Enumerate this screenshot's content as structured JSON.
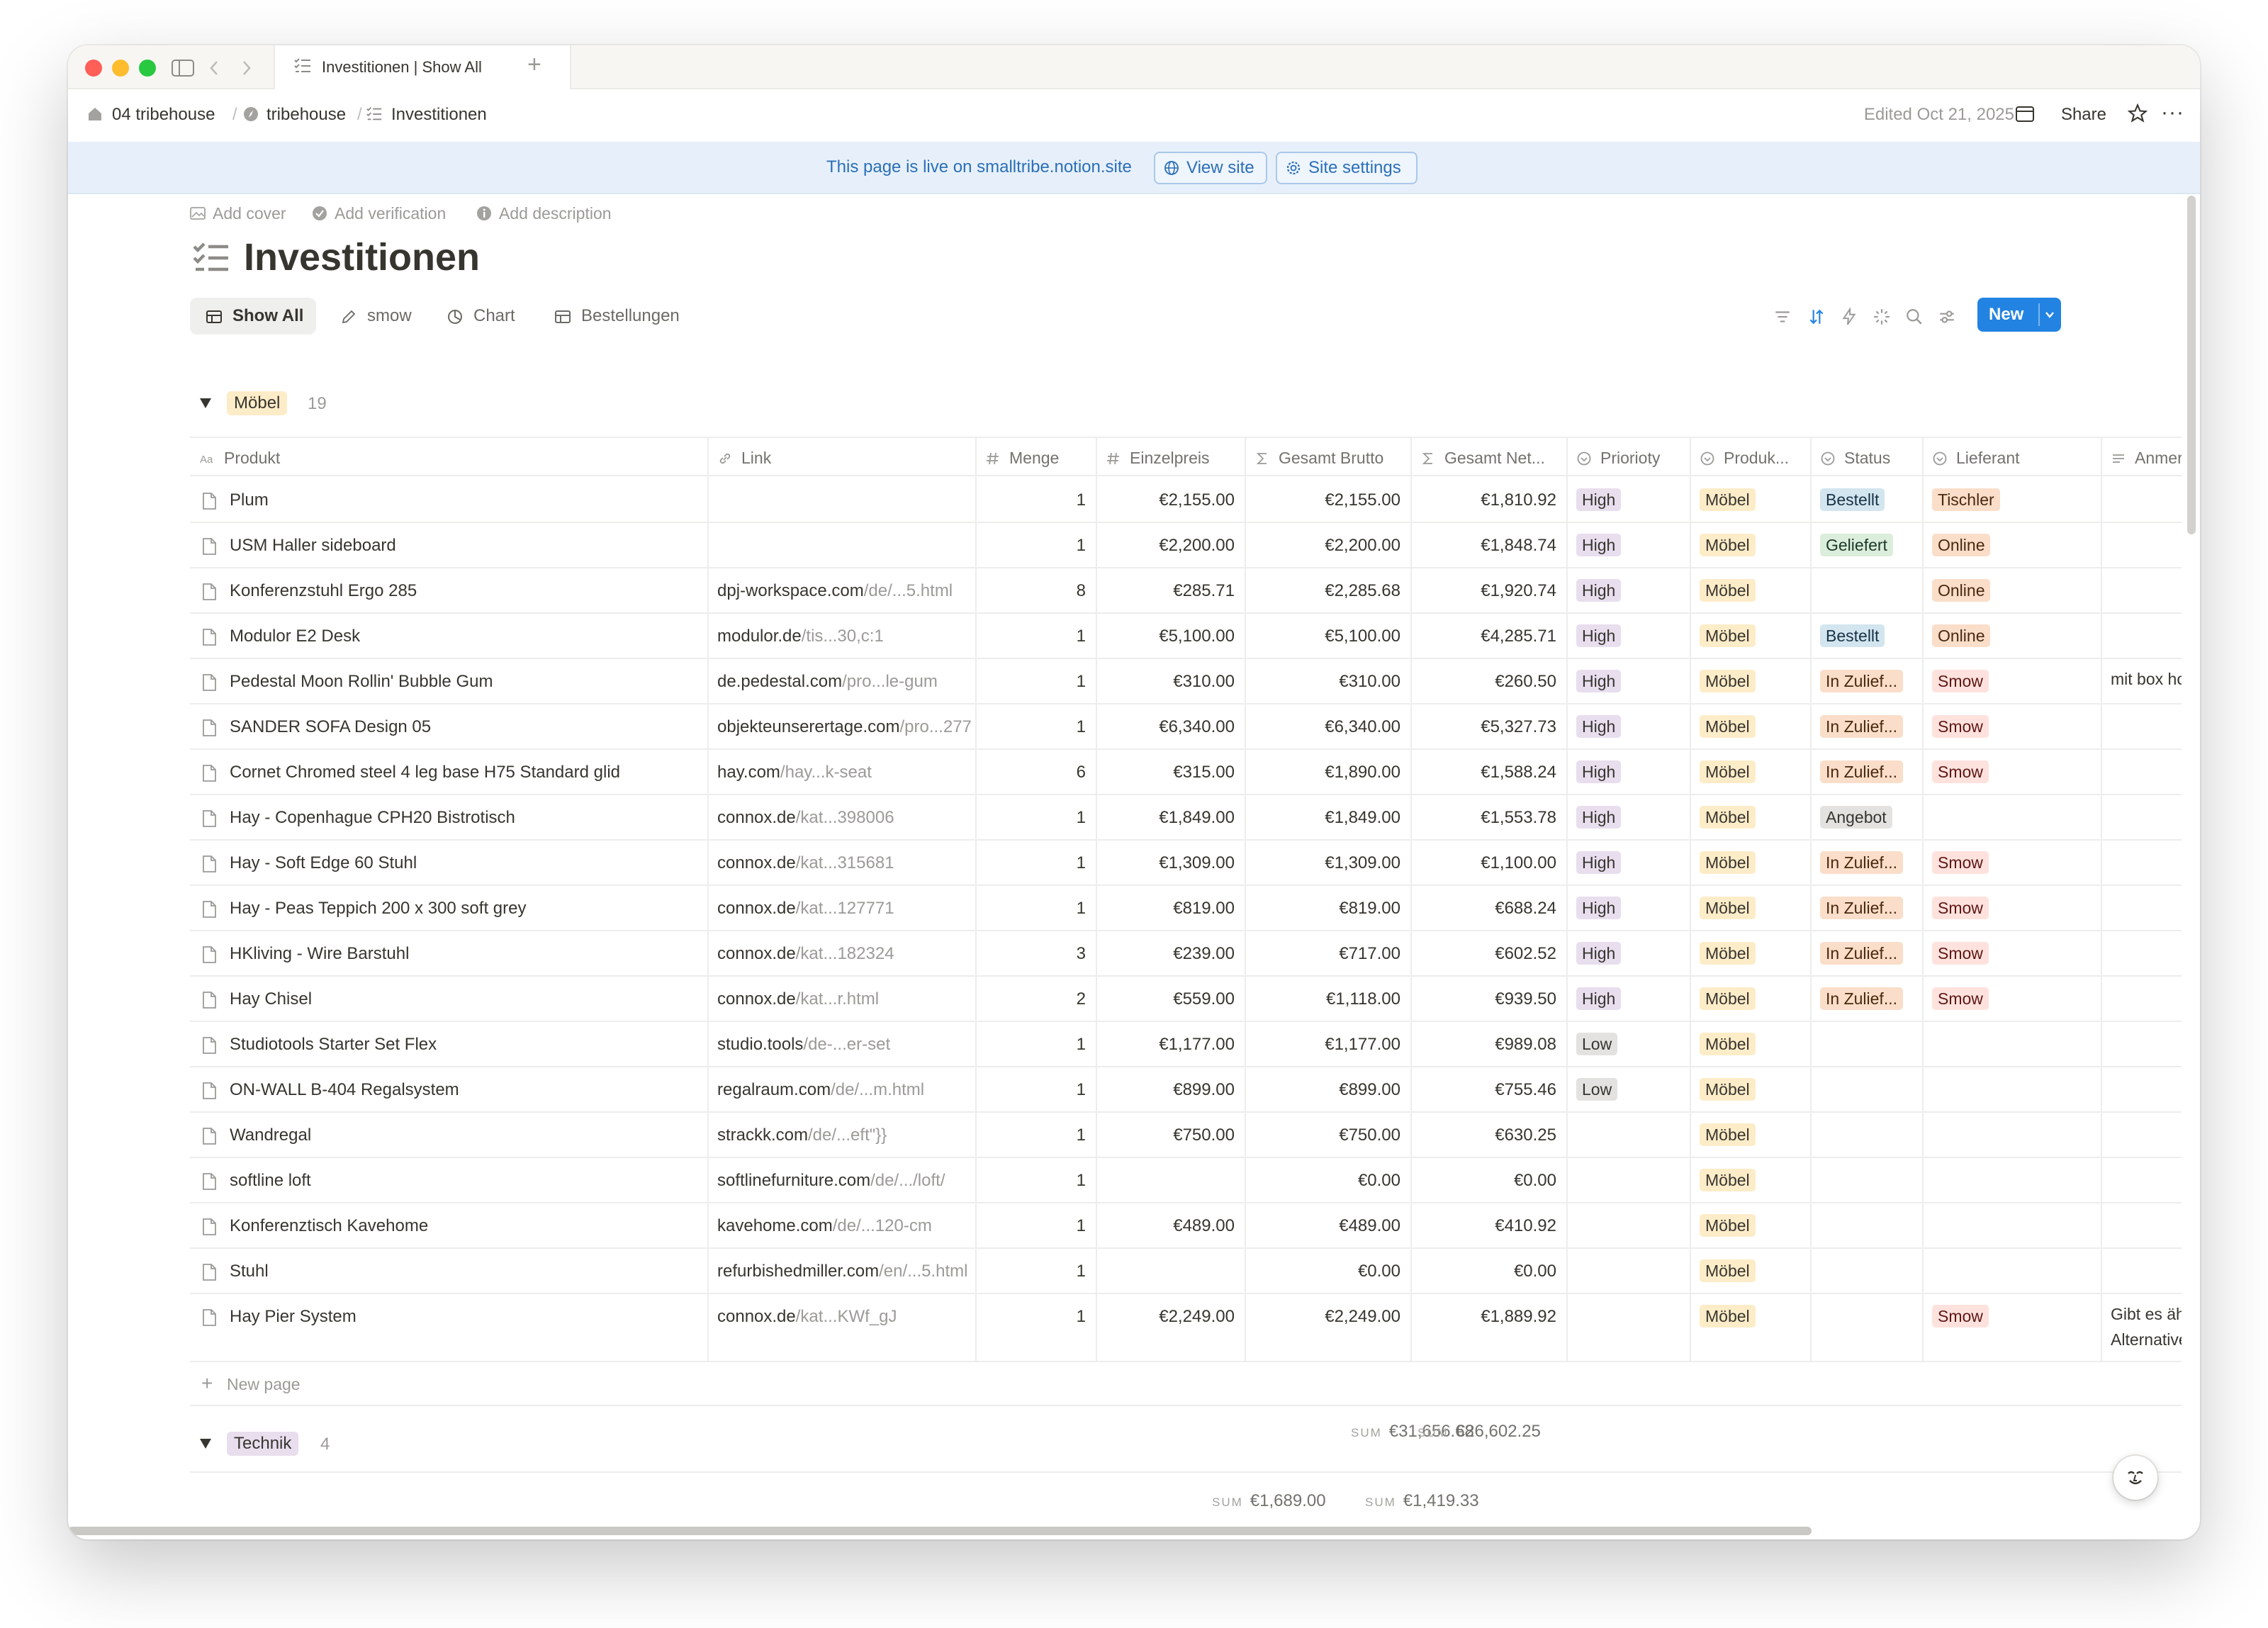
{
  "window": {
    "tab_title": "Investitionen | Show All",
    "new_tab": "+"
  },
  "breadcrumbs": [
    "04 tribehouse",
    "tribehouse",
    "Investitionen"
  ],
  "header": {
    "edited": "Edited Oct 21, 2025",
    "share": "Share",
    "more": "···"
  },
  "banner": {
    "text": "This page is live on smalltribe.notion.site",
    "view_site": "View site",
    "site_settings": "Site settings"
  },
  "page_meta": {
    "add_cover": "Add cover",
    "add_verification": "Add verification",
    "add_description": "Add description"
  },
  "page": {
    "title": "Investitionen"
  },
  "views": [
    "Show All",
    "smow",
    "Chart",
    "Bestellungen"
  ],
  "toolbar": {
    "new_label": "New",
    "icons": [
      "filter-icon",
      "sort-icon",
      "automation-icon",
      "customize-icon",
      "search-icon",
      "settings-icon"
    ]
  },
  "columns": [
    "Produkt",
    "Link",
    "Menge",
    "Einzelpreis",
    "Gesamt Brutto",
    "Gesamt Net...",
    "Priorioty",
    "Produk...",
    "Status",
    "Lieferant",
    "Anmerkungen"
  ],
  "colors": {
    "accent": "#2383e2",
    "banner_bg": "#e7f0fa",
    "tag_high": "#e8deee",
    "tag_low": "#e3e2e0",
    "tag_moebel": "#fdecc8",
    "tag_bestellt": "#d3e5ef",
    "tag_geliefert": "#dbeddb",
    "tag_zuliefer": "#fadec9",
    "tag_angebot": "#e3e2e0",
    "tag_lieferant": "#fadec9",
    "tag_smow": "#ffe2dd",
    "tag_technik": "#e8deee"
  },
  "groups": [
    {
      "name": "Möbel",
      "count": "19",
      "rows": [
        {
          "produkt": "Plum",
          "link_host": "",
          "link_path": "",
          "menge": "1",
          "einzel": "€2,155.00",
          "brutto": "€2,155.00",
          "netto": "€1,810.92",
          "prio": "High",
          "produk": "Möbel",
          "status": "Bestellt",
          "lieferant": "Tischler",
          "anmerkung": ""
        },
        {
          "produkt": "USM Haller sideboard",
          "link_host": "",
          "link_path": "",
          "menge": "1",
          "einzel": "€2,200.00",
          "brutto": "€2,200.00",
          "netto": "€1,848.74",
          "prio": "High",
          "produk": "Möbel",
          "status": "Geliefert",
          "lieferant": "Online",
          "anmerkung": ""
        },
        {
          "produkt": "Konferenzstuhl Ergo 285",
          "link_host": "dpj-workspace.com",
          "link_path": "/de/...5.html",
          "menge": "8",
          "einzel": "€285.71",
          "brutto": "€2,285.68",
          "netto": "€1,920.74",
          "prio": "High",
          "produk": "Möbel",
          "status": "",
          "lieferant": "Online",
          "anmerkung": ""
        },
        {
          "produkt": "Modulor E2 Desk",
          "link_host": "modulor.de",
          "link_path": "/tis...30,c:1",
          "menge": "1",
          "einzel": "€5,100.00",
          "brutto": "€5,100.00",
          "netto": "€4,285.71",
          "prio": "High",
          "produk": "Möbel",
          "status": "Bestellt",
          "lieferant": "Online",
          "anmerkung": ""
        },
        {
          "produkt": "Pedestal Moon Rollin' Bubble Gum",
          "link_host": "de.pedestal.com",
          "link_path": "/pro...le-gum",
          "menge": "1",
          "einzel": "€310.00",
          "brutto": "€310.00",
          "netto": "€260.50",
          "prio": "High",
          "produk": "Möbel",
          "status": "In Zulief...",
          "lieferant": "Smow",
          "anmerkung": "mit box holder und"
        },
        {
          "produkt": "SANDER SOFA Design 05",
          "link_host": "objekteunserertage.com",
          "link_path": "/pro...277",
          "menge": "1",
          "einzel": "€6,340.00",
          "brutto": "€6,340.00",
          "netto": "€5,327.73",
          "prio": "High",
          "produk": "Möbel",
          "status": "In Zulief...",
          "lieferant": "Smow",
          "anmerkung": ""
        },
        {
          "produkt": "Cornet Chromed steel 4 leg base H75 Standard glid",
          "link_host": "hay.com",
          "link_path": "/hay...k-seat",
          "menge": "6",
          "einzel": "€315.00",
          "brutto": "€1,890.00",
          "netto": "€1,588.24",
          "prio": "High",
          "produk": "Möbel",
          "status": "In Zulief...",
          "lieferant": "Smow",
          "anmerkung": ""
        },
        {
          "produkt": "Hay - Copenhague CPH20 Bistrotisch",
          "link_host": "connox.de",
          "link_path": "/kat...398006",
          "menge": "1",
          "einzel": "€1,849.00",
          "brutto": "€1,849.00",
          "netto": "€1,553.78",
          "prio": "High",
          "produk": "Möbel",
          "status": "Angebot",
          "lieferant": "",
          "anmerkung": ""
        },
        {
          "produkt": "Hay - Soft Edge 60 Stuhl",
          "link_host": "connox.de",
          "link_path": "/kat...315681",
          "menge": "1",
          "einzel": "€1,309.00",
          "brutto": "€1,309.00",
          "netto": "€1,100.00",
          "prio": "High",
          "produk": "Möbel",
          "status": "In Zulief...",
          "lieferant": "Smow",
          "anmerkung": ""
        },
        {
          "produkt": "Hay - Peas Teppich 200 x 300 soft grey",
          "link_host": "connox.de",
          "link_path": "/kat...127771",
          "menge": "1",
          "einzel": "€819.00",
          "brutto": "€819.00",
          "netto": "€688.24",
          "prio": "High",
          "produk": "Möbel",
          "status": "In Zulief...",
          "lieferant": "Smow",
          "anmerkung": ""
        },
        {
          "produkt": "HKliving - Wire Barstuhl",
          "link_host": "connox.de",
          "link_path": "/kat...182324",
          "menge": "3",
          "einzel": "€239.00",
          "brutto": "€717.00",
          "netto": "€602.52",
          "prio": "High",
          "produk": "Möbel",
          "status": "In Zulief...",
          "lieferant": "Smow",
          "anmerkung": ""
        },
        {
          "produkt": "Hay Chisel",
          "link_host": "connox.de",
          "link_path": "/kat...r.html",
          "menge": "2",
          "einzel": "€559.00",
          "brutto": "€1,118.00",
          "netto": "€939.50",
          "prio": "High",
          "produk": "Möbel",
          "status": "In Zulief...",
          "lieferant": "Smow",
          "anmerkung": ""
        },
        {
          "produkt": "Studiotools Starter Set Flex",
          "link_host": "studio.tools",
          "link_path": "/de-...er-set",
          "menge": "1",
          "einzel": "€1,177.00",
          "brutto": "€1,177.00",
          "netto": "€989.08",
          "prio": "Low",
          "produk": "Möbel",
          "status": "",
          "lieferant": "",
          "anmerkung": ""
        },
        {
          "produkt": "ON-WALL B-404 Regalsystem",
          "link_host": "regalraum.com",
          "link_path": "/de/...m.html",
          "menge": "1",
          "einzel": "€899.00",
          "brutto": "€899.00",
          "netto": "€755.46",
          "prio": "Low",
          "produk": "Möbel",
          "status": "",
          "lieferant": "",
          "anmerkung": ""
        },
        {
          "produkt": "Wandregal",
          "link_host": "strackk.com",
          "link_path": "/de/...eft\"}}",
          "menge": "1",
          "einzel": "€750.00",
          "brutto": "€750.00",
          "netto": "€630.25",
          "prio": "",
          "produk": "Möbel",
          "status": "",
          "lieferant": "",
          "anmerkung": ""
        },
        {
          "produkt": "softline loft",
          "link_host": "softlinefurniture.com",
          "link_path": "/de/.../loft/",
          "menge": "1",
          "einzel": "",
          "brutto": "€0.00",
          "netto": "€0.00",
          "prio": "",
          "produk": "Möbel",
          "status": "",
          "lieferant": "",
          "anmerkung": ""
        },
        {
          "produkt": "Konferenztisch Kavehome",
          "link_host": "kavehome.com",
          "link_path": "/de/...120-cm",
          "menge": "1",
          "einzel": "€489.00",
          "brutto": "€489.00",
          "netto": "€410.92",
          "prio": "",
          "produk": "Möbel",
          "status": "",
          "lieferant": "",
          "anmerkung": ""
        },
        {
          "produkt": "Stuhl",
          "link_host": "refurbishedmiller.com",
          "link_path": "/en/...5.html",
          "menge": "1",
          "einzel": "",
          "brutto": "€0.00",
          "netto": "€0.00",
          "prio": "",
          "produk": "Möbel",
          "status": "",
          "lieferant": "",
          "anmerkung": ""
        },
        {
          "produkt": "Hay Pier System",
          "link_host": "connox.de",
          "link_path": "/kat...KWf_gJ",
          "menge": "1",
          "einzel": "€2,249.00",
          "brutto": "€2,249.00",
          "netto": "€1,889.92",
          "prio": "",
          "produk": "Möbel",
          "status": "",
          "lieferant": "Smow",
          "anmerkung": "Gibt es ähnlich we",
          "anmerkung2": "Alternativen zu de"
        }
      ],
      "new_page": "New page",
      "sum_label": "SUM",
      "sum_brutto": "€31,656.68",
      "sum_netto": "€26,602.25"
    },
    {
      "name": "Technik",
      "count": "4",
      "sum_label": "SUM",
      "sum_brutto": "€1,689.00",
      "sum_netto": "€1,419.33"
    }
  ]
}
